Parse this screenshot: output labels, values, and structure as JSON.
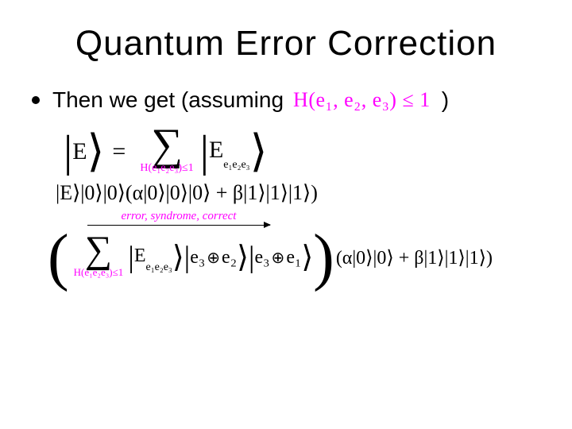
{
  "colors": {
    "magenta": "#ff00ff",
    "black": "#000000",
    "background": "#ffffff"
  },
  "title": "Quantum Error Correction",
  "bullet": {
    "prefix": "Then we get (assuming",
    "condition": "H(e₁, e₂, e₃) ≤ 1",
    "suffix": ")"
  },
  "eq1": {
    "lhs_inner": "E",
    "eq": "=",
    "sum_under": "H(e₁e₂e₃)≤1",
    "rhs_E": "E",
    "rhs_sub": "e₁e₂e₃"
  },
  "eq2": {
    "text": "|E⟩|0⟩|0⟩(α|0⟩|0⟩|0⟩ + β|1⟩|1⟩|1⟩)"
  },
  "arrow": {
    "label": "error, syndrome, correct"
  },
  "eq3": {
    "sum_under": "H(e₁e₂e₃)≤1",
    "E": "E",
    "Esub": "e₁e₂e₃",
    "k1a": "e₃",
    "k1b": "e₂",
    "k2a": "e₃",
    "k2b": "e₁",
    "tail": "(α|0⟩|0⟩ + β|1⟩|1⟩|1⟩)"
  }
}
